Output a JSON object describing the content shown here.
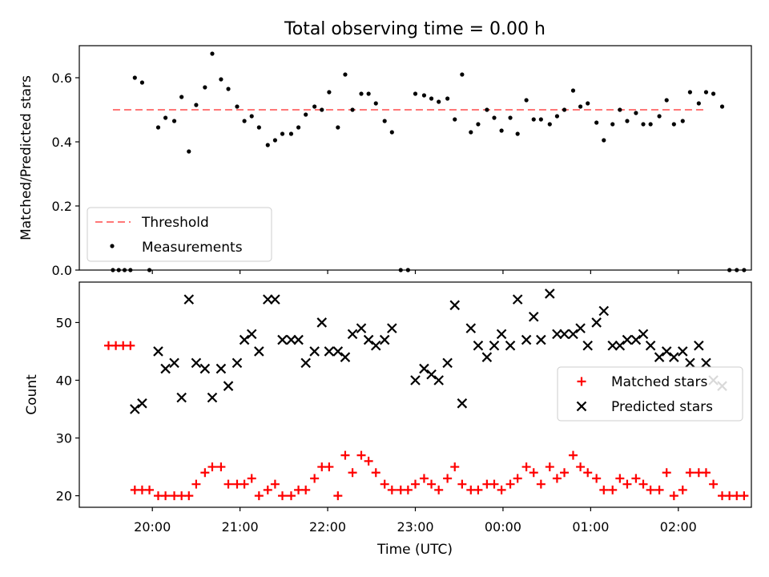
{
  "title": "Total observing time = 0.00 h",
  "colors": {
    "threshold": "#ff7777",
    "measurements": "#000000",
    "matched": "#ff0000",
    "predicted": "#000000"
  },
  "x_axis": {
    "label": "Time (UTC)",
    "range": [
      "19:10",
      "02:50"
    ],
    "ticks": [
      "20:00",
      "21:00",
      "22:00",
      "23:00",
      "00:00",
      "01:00",
      "02:00"
    ]
  },
  "chart_data": [
    {
      "type": "scatter",
      "panel": "top",
      "ylabel": "Matched/Predicted stars",
      "ylim": [
        0,
        0.7
      ],
      "yticks": [
        "0.0",
        "0.2",
        "0.4",
        "0.6"
      ],
      "legend_placement": "lower-left",
      "threshold": {
        "name": "Threshold",
        "value": 0.5,
        "x_range": [
          "19:33",
          "02:18"
        ]
      },
      "series": [
        {
          "name": "Measurements",
          "points": [
            [
              "19:33",
              0.0
            ],
            [
              "19:37",
              0.0
            ],
            [
              "19:41",
              0.0
            ],
            [
              "19:45",
              0.0
            ],
            [
              "19:48",
              0.6
            ],
            [
              "19:53",
              0.585
            ],
            [
              "19:58",
              0.0
            ],
            [
              "20:04",
              0.445
            ],
            [
              "20:09",
              0.475
            ],
            [
              "20:15",
              0.465
            ],
            [
              "20:20",
              0.54
            ],
            [
              "20:25",
              0.37
            ],
            [
              "20:30",
              0.515
            ],
            [
              "20:36",
              0.57
            ],
            [
              "20:41",
              0.675
            ],
            [
              "20:47",
              0.595
            ],
            [
              "20:52",
              0.565
            ],
            [
              "20:58",
              0.51
            ],
            [
              "21:03",
              0.465
            ],
            [
              "21:08",
              0.48
            ],
            [
              "21:13",
              0.445
            ],
            [
              "21:19",
              0.39
            ],
            [
              "21:24",
              0.405
            ],
            [
              "21:29",
              0.425
            ],
            [
              "21:35",
              0.425
            ],
            [
              "21:40",
              0.445
            ],
            [
              "21:45",
              0.485
            ],
            [
              "21:51",
              0.51
            ],
            [
              "21:56",
              0.5
            ],
            [
              "22:01",
              0.555
            ],
            [
              "22:07",
              0.445
            ],
            [
              "22:12",
              0.61
            ],
            [
              "22:17",
              0.5
            ],
            [
              "22:23",
              0.55
            ],
            [
              "22:28",
              0.55
            ],
            [
              "22:33",
              0.52
            ],
            [
              "22:39",
              0.465
            ],
            [
              "22:44",
              0.43
            ],
            [
              "22:50",
              0.0
            ],
            [
              "22:55",
              0.0
            ],
            [
              "23:00",
              0.55
            ],
            [
              "23:06",
              0.545
            ],
            [
              "23:11",
              0.535
            ],
            [
              "23:16",
              0.525
            ],
            [
              "23:22",
              0.535
            ],
            [
              "23:27",
              0.47
            ],
            [
              "23:32",
              0.61
            ],
            [
              "23:38",
              0.43
            ],
            [
              "23:43",
              0.455
            ],
            [
              "23:49",
              0.5
            ],
            [
              "23:54",
              0.475
            ],
            [
              "23:59",
              0.435
            ],
            [
              "00:05",
              0.475
            ],
            [
              "00:10",
              0.425
            ],
            [
              "00:16",
              0.53
            ],
            [
              "00:21",
              0.47
            ],
            [
              "00:26",
              0.47
            ],
            [
              "00:32",
              0.455
            ],
            [
              "00:37",
              0.48
            ],
            [
              "00:42",
              0.5
            ],
            [
              "00:48",
              0.56
            ],
            [
              "00:53",
              0.51
            ],
            [
              "00:58",
              0.52
            ],
            [
              "01:04",
              0.46
            ],
            [
              "01:09",
              0.405
            ],
            [
              "01:15",
              0.455
            ],
            [
              "01:20",
              0.5
            ],
            [
              "01:25",
              0.465
            ],
            [
              "01:31",
              0.49
            ],
            [
              "01:36",
              0.455
            ],
            [
              "01:41",
              0.455
            ],
            [
              "01:47",
              0.48
            ],
            [
              "01:52",
              0.53
            ],
            [
              "01:57",
              0.455
            ],
            [
              "02:03",
              0.465
            ],
            [
              "02:08",
              0.555
            ],
            [
              "02:14",
              0.52
            ],
            [
              "02:19",
              0.555
            ],
            [
              "02:24",
              0.55
            ],
            [
              "02:30",
              0.51
            ],
            [
              "02:35",
              0.0
            ],
            [
              "02:40",
              0.0
            ],
            [
              "02:45",
              0.0
            ]
          ]
        }
      ]
    },
    {
      "type": "scatter",
      "panel": "bottom",
      "ylabel": "Count",
      "ylim": [
        18,
        57
      ],
      "yticks": [
        "20",
        "30",
        "40",
        "50"
      ],
      "legend_placement": "center-right",
      "series": [
        {
          "name": "Matched stars",
          "marker": "plus",
          "points": [
            [
              "19:30",
              46
            ],
            [
              "19:35",
              46
            ],
            [
              "19:40",
              46
            ],
            [
              "19:45",
              46
            ],
            [
              "19:48",
              21
            ],
            [
              "19:53",
              21
            ],
            [
              "19:58",
              21
            ],
            [
              "20:04",
              20
            ],
            [
              "20:09",
              20
            ],
            [
              "20:15",
              20
            ],
            [
              "20:20",
              20
            ],
            [
              "20:25",
              20
            ],
            [
              "20:30",
              22
            ],
            [
              "20:36",
              24
            ],
            [
              "20:41",
              25
            ],
            [
              "20:47",
              25
            ],
            [
              "20:52",
              22
            ],
            [
              "20:58",
              22
            ],
            [
              "21:03",
              22
            ],
            [
              "21:08",
              23
            ],
            [
              "21:13",
              20
            ],
            [
              "21:19",
              21
            ],
            [
              "21:24",
              22
            ],
            [
              "21:29",
              20
            ],
            [
              "21:35",
              20
            ],
            [
              "21:40",
              21
            ],
            [
              "21:45",
              21
            ],
            [
              "21:51",
              23
            ],
            [
              "21:56",
              25
            ],
            [
              "22:01",
              25
            ],
            [
              "22:07",
              20
            ],
            [
              "22:12",
              27
            ],
            [
              "22:17",
              24
            ],
            [
              "22:23",
              27
            ],
            [
              "22:28",
              26
            ],
            [
              "22:33",
              24
            ],
            [
              "22:39",
              22
            ],
            [
              "22:44",
              21
            ],
            [
              "22:50",
              21
            ],
            [
              "22:55",
              21
            ],
            [
              "23:00",
              22
            ],
            [
              "23:06",
              23
            ],
            [
              "23:11",
              22
            ],
            [
              "23:16",
              21
            ],
            [
              "23:22",
              23
            ],
            [
              "23:27",
              25
            ],
            [
              "23:32",
              22
            ],
            [
              "23:38",
              21
            ],
            [
              "23:43",
              21
            ],
            [
              "23:49",
              22
            ],
            [
              "23:54",
              22
            ],
            [
              "23:59",
              21
            ],
            [
              "00:05",
              22
            ],
            [
              "00:10",
              23
            ],
            [
              "00:16",
              25
            ],
            [
              "00:21",
              24
            ],
            [
              "00:26",
              22
            ],
            [
              "00:32",
              25
            ],
            [
              "00:37",
              23
            ],
            [
              "00:42",
              24
            ],
            [
              "00:48",
              27
            ],
            [
              "00:53",
              25
            ],
            [
              "00:58",
              24
            ],
            [
              "01:04",
              23
            ],
            [
              "01:09",
              21
            ],
            [
              "01:15",
              21
            ],
            [
              "01:20",
              23
            ],
            [
              "01:25",
              22
            ],
            [
              "01:31",
              23
            ],
            [
              "01:36",
              22
            ],
            [
              "01:41",
              21
            ],
            [
              "01:47",
              21
            ],
            [
              "01:52",
              24
            ],
            [
              "01:57",
              20
            ],
            [
              "02:03",
              21
            ],
            [
              "02:08",
              24
            ],
            [
              "02:14",
              24
            ],
            [
              "02:19",
              24
            ],
            [
              "02:24",
              22
            ],
            [
              "02:30",
              20
            ],
            [
              "02:35",
              20
            ],
            [
              "02:40",
              20
            ],
            [
              "02:45",
              20
            ]
          ]
        },
        {
          "name": "Predicted stars",
          "marker": "x",
          "points": [
            [
              "19:48",
              35
            ],
            [
              "19:53",
              36
            ],
            [
              "20:04",
              45
            ],
            [
              "20:09",
              42
            ],
            [
              "20:15",
              43
            ],
            [
              "20:20",
              37
            ],
            [
              "20:25",
              54
            ],
            [
              "20:30",
              43
            ],
            [
              "20:36",
              42
            ],
            [
              "20:41",
              37
            ],
            [
              "20:47",
              42
            ],
            [
              "20:52",
              39
            ],
            [
              "20:58",
              43
            ],
            [
              "21:03",
              47
            ],
            [
              "21:08",
              48
            ],
            [
              "21:13",
              45
            ],
            [
              "21:19",
              54
            ],
            [
              "21:24",
              54
            ],
            [
              "21:29",
              47
            ],
            [
              "21:35",
              47
            ],
            [
              "21:40",
              47
            ],
            [
              "21:45",
              43
            ],
            [
              "21:51",
              45
            ],
            [
              "21:56",
              50
            ],
            [
              "22:01",
              45
            ],
            [
              "22:07",
              45
            ],
            [
              "22:12",
              44
            ],
            [
              "22:17",
              48
            ],
            [
              "22:23",
              49
            ],
            [
              "22:28",
              47
            ],
            [
              "22:33",
              46
            ],
            [
              "22:39",
              47
            ],
            [
              "22:44",
              49
            ],
            [
              "23:00",
              40
            ],
            [
              "23:06",
              42
            ],
            [
              "23:11",
              41
            ],
            [
              "23:16",
              40
            ],
            [
              "23:22",
              43
            ],
            [
              "23:27",
              53
            ],
            [
              "23:32",
              36
            ],
            [
              "23:38",
              49
            ],
            [
              "23:43",
              46
            ],
            [
              "23:49",
              44
            ],
            [
              "23:54",
              46
            ],
            [
              "23:59",
              48
            ],
            [
              "00:05",
              46
            ],
            [
              "00:10",
              54
            ],
            [
              "00:16",
              47
            ],
            [
              "00:21",
              51
            ],
            [
              "00:26",
              47
            ],
            [
              "00:32",
              55
            ],
            [
              "00:37",
              48
            ],
            [
              "00:42",
              48
            ],
            [
              "00:48",
              48
            ],
            [
              "00:53",
              49
            ],
            [
              "00:58",
              46
            ],
            [
              "01:04",
              50
            ],
            [
              "01:09",
              52
            ],
            [
              "01:15",
              46
            ],
            [
              "01:20",
              46
            ],
            [
              "01:25",
              47
            ],
            [
              "01:31",
              47
            ],
            [
              "01:36",
              48
            ],
            [
              "01:41",
              46
            ],
            [
              "01:47",
              44
            ],
            [
              "01:52",
              45
            ],
            [
              "01:57",
              44
            ],
            [
              "02:03",
              45
            ],
            [
              "02:08",
              43
            ],
            [
              "02:14",
              46
            ],
            [
              "02:19",
              43
            ],
            [
              "02:24",
              40
            ],
            [
              "02:30",
              39
            ]
          ]
        }
      ]
    }
  ]
}
